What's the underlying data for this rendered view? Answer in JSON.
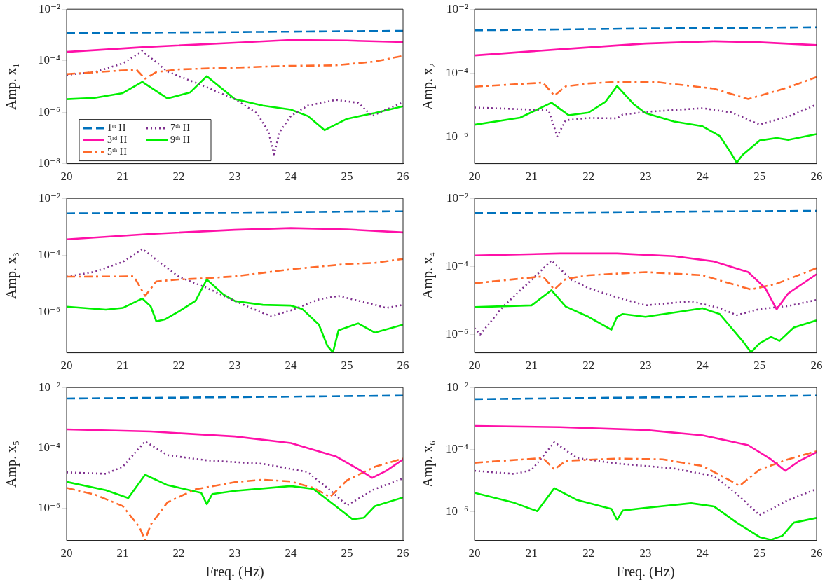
{
  "chart_data": [
    {
      "type": "line",
      "ylabel": "Amp. x₁",
      "log": "y",
      "grid": false,
      "legend": "bottom left",
      "xlim": [
        20,
        26
      ],
      "xticks": [
        20,
        21,
        22,
        23,
        24,
        25,
        26
      ],
      "ylim": [
        1e-08,
        0.01
      ],
      "yticks": [
        {
          "value": 0.01,
          "label": "10⁻²"
        },
        {
          "value": 0.0001,
          "label": "10⁻⁴"
        },
        {
          "value": 1e-06,
          "label": "10⁻⁶"
        },
        {
          "value": 1e-08,
          "label": "10⁻⁸"
        }
      ],
      "series": [
        {
          "name": "1ˢᵗ H",
          "color": "#0072bd",
          "line_style": "dashed",
          "x": [
            20,
            23,
            26
          ],
          "values": [
            0.0012,
            0.0013,
            0.00145
          ]
        },
        {
          "name": "3ʳᵈ H",
          "color": "#ff10a8",
          "line_style": "solid",
          "x": [
            20,
            21.4,
            23,
            24,
            25,
            26
          ],
          "values": [
            0.00022,
            0.00034,
            0.0005,
            0.00064,
            0.00061,
            0.00053
          ]
        },
        {
          "name": "5ᵗʰ H",
          "color": "#ff6a2a",
          "line_style": "dashdot",
          "x": [
            20,
            21,
            21.25,
            21.4,
            21.6,
            22,
            23,
            24,
            24.8,
            25.5,
            26
          ],
          "values": [
            3e-05,
            4.2e-05,
            4.4e-05,
            2e-05,
            3.6e-05,
            4.6e-05,
            5.4e-05,
            6.3e-05,
            6.6e-05,
            9.3e-05,
            0.000155
          ]
        },
        {
          "name": "7ᵗʰ H",
          "color": "#7e2f8e",
          "line_style": "dotted",
          "x": [
            20,
            20.5,
            21,
            21.35,
            21.8,
            22.5,
            23,
            23.4,
            23.6,
            23.7,
            23.8,
            24,
            24.3,
            24.8,
            25.2,
            25.45,
            25.7,
            26
          ],
          "values": [
            2.8e-05,
            3.6e-05,
            7.8e-05,
            0.00024,
            3.8e-05,
            9.3e-06,
            3.2e-06,
            8.9e-07,
            1.7e-07,
            2.3e-08,
            1.7e-07,
            7.1e-07,
            1.8e-06,
            3e-06,
            2.3e-06,
            7.1e-07,
            1.26e-06,
            2.4e-06
          ]
        },
        {
          "name": "9ᵗʰ H",
          "color": "#00f000",
          "line_style": "solid",
          "x": [
            20,
            20.5,
            21,
            21.35,
            21.8,
            22.2,
            22.5,
            23,
            23.5,
            24,
            24.3,
            24.6,
            25,
            25.5,
            26
          ],
          "values": [
            3.2e-06,
            3.6e-06,
            5.5e-06,
            1.5e-05,
            3.4e-06,
            5.8e-06,
            2.5e-05,
            3.2e-06,
            1.8e-06,
            1.26e-06,
            7.1e-07,
            2e-07,
            5.5e-07,
            9.3e-07,
            1.7e-06
          ]
        }
      ]
    },
    {
      "type": "line",
      "ylabel": "Amp. x₂",
      "log": "y",
      "grid": false,
      "xlim": [
        20,
        26
      ],
      "xticks": [
        20,
        21,
        22,
        23,
        24,
        25,
        26
      ],
      "ylim": [
        1.5e-07,
        0.01
      ],
      "yticks": [
        {
          "value": 0.01,
          "label": "10⁻²"
        },
        {
          "value": 0.0001,
          "label": "10⁻⁴"
        },
        {
          "value": 1e-06,
          "label": "10⁻⁶"
        }
      ],
      "series": [
        {
          "color": "#0072bd",
          "line_style": "dashed",
          "x": [
            20,
            23,
            26
          ],
          "values": [
            0.0022,
            0.0025,
            0.00275
          ]
        },
        {
          "color": "#ff10a8",
          "line_style": "solid",
          "x": [
            20,
            21.5,
            23,
            24.2,
            25,
            26
          ],
          "values": [
            0.00036,
            0.00056,
            0.00085,
            0.001,
            0.00093,
            0.00076
          ]
        },
        {
          "color": "#ff6a2a",
          "line_style": "dashdot",
          "x": [
            20,
            21.2,
            21.4,
            21.6,
            22,
            22.5,
            23.2,
            24.2,
            24.8,
            25.5,
            26
          ],
          "values": [
            3.8e-05,
            5.1e-05,
            2e-05,
            3.9e-05,
            4.8e-05,
            5.4e-05,
            5.3e-05,
            3.3e-05,
            1.55e-05,
            3.6e-05,
            7.6e-05
          ]
        },
        {
          "color": "#7e2f8e",
          "line_style": "dotted",
          "x": [
            20,
            21,
            21.3,
            21.45,
            21.6,
            22,
            22.5,
            22.6,
            23,
            24,
            24.5,
            25,
            25.5,
            26
          ],
          "values": [
            8.5e-06,
            7.3e-06,
            6.9e-06,
            1.07e-06,
            3.4e-06,
            4e-06,
            3.9e-06,
            5.1e-06,
            6.2e-06,
            8.1e-06,
            6e-06,
            2.5e-06,
            4.4e-06,
            1.05e-05
          ]
        },
        {
          "color": "#00f000",
          "line_style": "solid",
          "x": [
            20,
            20.8,
            21.35,
            21.65,
            22,
            22.3,
            22.5,
            22.8,
            23,
            23.5,
            24,
            24.3,
            24.5,
            24.6,
            24.7,
            25,
            25.3,
            25.5,
            26
          ],
          "values": [
            2.45e-06,
            4.1e-06,
            1.2e-05,
            4.9e-06,
            5.9e-06,
            1.3e-05,
            4e-05,
            1.05e-05,
            5.7e-06,
            3.1e-06,
            2.2e-06,
            1.1e-06,
            3.2e-07,
            1.6e-07,
            2.8e-07,
            7.9e-07,
            9.5e-07,
            8.3e-07,
            1.25e-06
          ]
        }
      ]
    },
    {
      "type": "line",
      "ylabel": "Amp. x₃",
      "log": "y",
      "grid": false,
      "xlim": [
        20,
        26
      ],
      "xticks": [
        20,
        21,
        22,
        23,
        24,
        25,
        26
      ],
      "ylim": [
        3.7e-08,
        0.01
      ],
      "yticks": [
        {
          "value": 0.01,
          "label": "10⁻²"
        },
        {
          "value": 0.0001,
          "label": "10⁻⁴"
        },
        {
          "value": 1e-06,
          "label": "10⁻⁶"
        }
      ],
      "series": [
        {
          "color": "#0072bd",
          "line_style": "dashed",
          "x": [
            20,
            23,
            26
          ],
          "values": [
            0.00295,
            0.0032,
            0.0035
          ]
        },
        {
          "color": "#ff10a8",
          "line_style": "solid",
          "x": [
            20,
            21.5,
            23,
            24,
            25,
            26
          ],
          "values": [
            0.00036,
            0.00056,
            0.00078,
            0.0009,
            0.00081,
            0.00063
          ]
        },
        {
          "color": "#ff6a2a",
          "line_style": "dashdot",
          "x": [
            20,
            21.2,
            21.4,
            21.6,
            22,
            22.5,
            23,
            24,
            25,
            25.5,
            26
          ],
          "values": [
            1.75e-05,
            1.8e-05,
            3.7e-06,
            1.2e-05,
            1.4e-05,
            1.55e-05,
            1.8e-05,
            3.2e-05,
            4.9e-05,
            5.4e-05,
            7.4e-05
          ]
        },
        {
          "color": "#7e2f8e",
          "line_style": "dotted",
          "x": [
            20,
            20.5,
            21,
            21.35,
            21.8,
            22,
            22.5,
            23,
            23.5,
            23.65,
            24,
            24.5,
            24.85,
            25.5,
            25.7,
            26
          ],
          "values": [
            1.75e-05,
            2.6e-05,
            5.8e-05,
            0.000166,
            3.5e-05,
            1.75e-05,
            7.1e-06,
            2.45e-06,
            9.3e-07,
            7.2e-07,
            1.15e-06,
            2.8e-06,
            3.7e-06,
            1.8e-06,
            1.4e-06,
            1.8e-06
          ]
        },
        {
          "color": "#00f000",
          "line_style": "solid",
          "x": [
            20,
            20.7,
            21,
            21.35,
            21.5,
            21.6,
            21.75,
            22,
            22.3,
            22.5,
            22.8,
            23,
            23.5,
            24,
            24.2,
            24.5,
            24.65,
            24.75,
            24.85,
            25.2,
            25.5,
            26
          ],
          "values": [
            1.55e-06,
            1.22e-06,
            1.4e-06,
            3e-06,
            1.6e-06,
            4.7e-07,
            5.5e-07,
            1.05e-06,
            2.5e-06,
            1.4e-05,
            4.1e-06,
            2.45e-06,
            1.8e-06,
            1.7e-06,
            1.3e-06,
            3.6e-07,
            6.5e-08,
            3.8e-08,
            2.3e-07,
            4e-07,
            1.9e-07,
            3.6e-07
          ]
        }
      ]
    },
    {
      "type": "line",
      "ylabel": "Amp. x₄",
      "log": "y",
      "grid": false,
      "xlim": [
        20,
        26
      ],
      "xticks": [
        20,
        21,
        22,
        23,
        24,
        25,
        26
      ],
      "ylim": [
        2.9e-07,
        0.01
      ],
      "yticks": [
        {
          "value": 0.01,
          "label": "10⁻²"
        },
        {
          "value": 0.0001,
          "label": "10⁻⁴"
        },
        {
          "value": 1e-06,
          "label": "10⁻⁶"
        }
      ],
      "series": [
        {
          "color": "#0072bd",
          "line_style": "dashed",
          "x": [
            20,
            23,
            26
          ],
          "values": [
            0.0037,
            0.004,
            0.0043
          ]
        },
        {
          "color": "#ff10a8",
          "line_style": "solid",
          "x": [
            20,
            21.5,
            22.5,
            23.5,
            24.2,
            24.8,
            25.1,
            25.3,
            25.5,
            26
          ],
          "values": [
            0.00021,
            0.00024,
            0.00024,
            0.0002,
            0.00014,
            6.8e-05,
            2.3e-05,
            5.5e-06,
            1.6e-05,
            5.9e-05
          ]
        },
        {
          "color": "#ff6a2a",
          "line_style": "dashdot",
          "x": [
            20,
            21.2,
            21.4,
            21.6,
            22,
            23,
            24,
            24.5,
            24.85,
            25.3,
            26
          ],
          "values": [
            3.2e-05,
            5.1e-05,
            2.1e-05,
            4.3e-05,
            5.5e-05,
            6.8e-05,
            5.5e-05,
            3.1e-05,
            2.1e-05,
            3.1e-05,
            8.9e-05
          ]
        },
        {
          "color": "#7e2f8e",
          "line_style": "dotted",
          "x": [
            20,
            20.1,
            20.5,
            21,
            21.35,
            21.7,
            22,
            22.5,
            23,
            23.8,
            24.3,
            24.6,
            25,
            25.5,
            26
          ],
          "values": [
            1.55e-06,
            1e-06,
            6.6e-06,
            4e-05,
            0.00015,
            4e-05,
            2.3e-05,
            1.23e-05,
            7.2e-06,
            9.5e-06,
            6e-06,
            3.7e-06,
            5.6e-06,
            6.9e-06,
            1.04e-05
          ]
        },
        {
          "color": "#00f000",
          "line_style": "solid",
          "x": [
            20,
            21,
            21.35,
            21.6,
            22,
            22.4,
            22.5,
            22.6,
            23,
            24,
            24.3,
            24.7,
            24.85,
            25,
            25.2,
            25.35,
            25.6,
            26
          ],
          "values": [
            6.4e-06,
            7.2e-06,
            2e-05,
            6.6e-06,
            3.3e-06,
            1.38e-06,
            3.3e-06,
            4e-06,
            3.3e-06,
            5.9e-06,
            4e-06,
            6.5e-07,
            3e-07,
            5.5e-07,
            8.5e-07,
            6.5e-07,
            1.6e-06,
            2.6e-06
          ]
        }
      ]
    },
    {
      "type": "line",
      "xlabel": "Freq. (Hz)",
      "ylabel": "Amp. x₅",
      "log": "y",
      "grid": false,
      "xlim": [
        20,
        26
      ],
      "xticks": [
        20,
        21,
        22,
        23,
        24,
        25,
        26
      ],
      "ylim": [
        8.7e-08,
        0.01
      ],
      "yticks": [
        {
          "value": 0.01,
          "label": "10⁻²"
        },
        {
          "value": 0.0001,
          "label": "10⁻⁴"
        },
        {
          "value": 1e-06,
          "label": "10⁻⁶"
        }
      ],
      "series": [
        {
          "color": "#0072bd",
          "line_style": "dashed",
          "x": [
            20,
            23,
            26
          ],
          "values": [
            0.0043,
            0.0048,
            0.0054
          ]
        },
        {
          "color": "#ff10a8",
          "line_style": "solid",
          "x": [
            20,
            21.5,
            23,
            24,
            24.8,
            25.2,
            25.45,
            25.7,
            26
          ],
          "values": [
            0.00041,
            0.00035,
            0.00024,
            0.000145,
            5.3e-05,
            2e-05,
            1.03e-05,
            1.75e-05,
            4.2e-05
          ]
        },
        {
          "color": "#ff6a2a",
          "line_style": "dashdot",
          "x": [
            20,
            20.5,
            21,
            21.3,
            21.4,
            21.5,
            21.8,
            22.3,
            23,
            23.5,
            24,
            24.4,
            24.7,
            25,
            25.5,
            26
          ],
          "values": [
            4.8e-06,
            2.9e-06,
            1.2e-06,
            2.4e-07,
            8.9e-08,
            2.9e-07,
            1.6e-06,
            4.3e-06,
            7.4e-06,
            8.9e-06,
            7.8e-06,
            4.8e-06,
            2.4e-06,
            8.5e-06,
            2.4e-05,
            4.5e-05
          ]
        },
        {
          "color": "#7e2f8e",
          "line_style": "dotted",
          "x": [
            20,
            20.7,
            21,
            21.4,
            21.8,
            22.5,
            23.5,
            24.3,
            24.7,
            25,
            25.5,
            26
          ],
          "values": [
            1.56e-05,
            1.4e-05,
            2.4e-05,
            0.000165,
            5.8e-05,
            3.9e-05,
            3e-05,
            1.6e-05,
            4e-06,
            1.27e-06,
            4.4e-06,
            9.8e-06
          ]
        },
        {
          "color": "#00f000",
          "line_style": "solid",
          "x": [
            20,
            20.7,
            21.1,
            21.4,
            21.8,
            22.4,
            22.5,
            22.6,
            23,
            24,
            24.4,
            24.8,
            25.1,
            25.3,
            25.5,
            26
          ],
          "values": [
            7.6e-06,
            4e-06,
            2.2e-06,
            1.3e-05,
            5.9e-06,
            3.3e-06,
            1.38e-06,
            3e-06,
            3.8e-06,
            5.5e-06,
            4.4e-06,
            1.2e-06,
            4.4e-07,
            4.9e-07,
            1.2e-06,
            2.3e-06
          ]
        }
      ]
    },
    {
      "type": "line",
      "xlabel": "Freq. (Hz)",
      "ylabel": "Amp. x₆",
      "log": "y",
      "grid": false,
      "xlim": [
        20,
        26
      ],
      "xticks": [
        20,
        21,
        22,
        23,
        24,
        25,
        26
      ],
      "ylim": [
        1.2e-07,
        0.01
      ],
      "yticks": [
        {
          "value": 0.01,
          "label": "10⁻²"
        },
        {
          "value": 0.0001,
          "label": "10⁻⁴"
        },
        {
          "value": 1e-06,
          "label": "10⁻⁶"
        }
      ],
      "series": [
        {
          "color": "#0072bd",
          "line_style": "dashed",
          "x": [
            20,
            23,
            26
          ],
          "values": [
            0.0042,
            0.0048,
            0.0055
          ]
        },
        {
          "color": "#ff10a8",
          "line_style": "solid",
          "x": [
            20,
            21.5,
            23,
            24,
            24.8,
            25.2,
            25.45,
            25.7,
            26
          ],
          "values": [
            0.00058,
            0.00053,
            0.00043,
            0.00029,
            0.00014,
            4.9e-05,
            2.1e-05,
            4.4e-05,
            8.3e-05
          ]
        },
        {
          "color": "#ff6a2a",
          "line_style": "dashdot",
          "x": [
            20,
            21.2,
            21.4,
            21.6,
            22.5,
            23.3,
            24,
            24.4,
            24.65,
            25,
            25.5,
            26
          ],
          "values": [
            3.8e-05,
            5.4e-05,
            2.3e-05,
            4.4e-05,
            5.2e-05,
            4.9e-05,
            3e-05,
            1.23e-05,
            6.9e-06,
            2.3e-05,
            4.9e-05,
            8.9e-05
          ]
        },
        {
          "color": "#7e2f8e",
          "line_style": "dotted",
          "x": [
            20,
            20.7,
            21,
            21.4,
            21.8,
            22.5,
            23.5,
            24.2,
            24.6,
            25,
            25.5,
            26
          ],
          "values": [
            2.1e-05,
            1.66e-05,
            2.2e-05,
            0.000174,
            5.4e-05,
            3.6e-05,
            2.5e-05,
            1.4e-05,
            3.8e-06,
            7.8e-07,
            2.4e-06,
            5.4e-06
          ]
        },
        {
          "color": "#00f000",
          "line_style": "solid",
          "x": [
            20,
            20.7,
            21.1,
            21.4,
            21.8,
            22.4,
            22.5,
            22.6,
            23,
            23.8,
            24.2,
            24.6,
            25,
            25.2,
            25.4,
            25.6,
            26
          ],
          "values": [
            4.1e-06,
            1.95e-06,
            1.05e-06,
            5.8e-06,
            2.4e-06,
            1.25e-06,
            5.5e-07,
            1.1e-06,
            1.35e-06,
            1.9e-06,
            1.5e-06,
            4.5e-07,
            1.55e-07,
            1.26e-07,
            1.7e-07,
            4.5e-07,
            6.4e-07
          ]
        }
      ]
    }
  ]
}
